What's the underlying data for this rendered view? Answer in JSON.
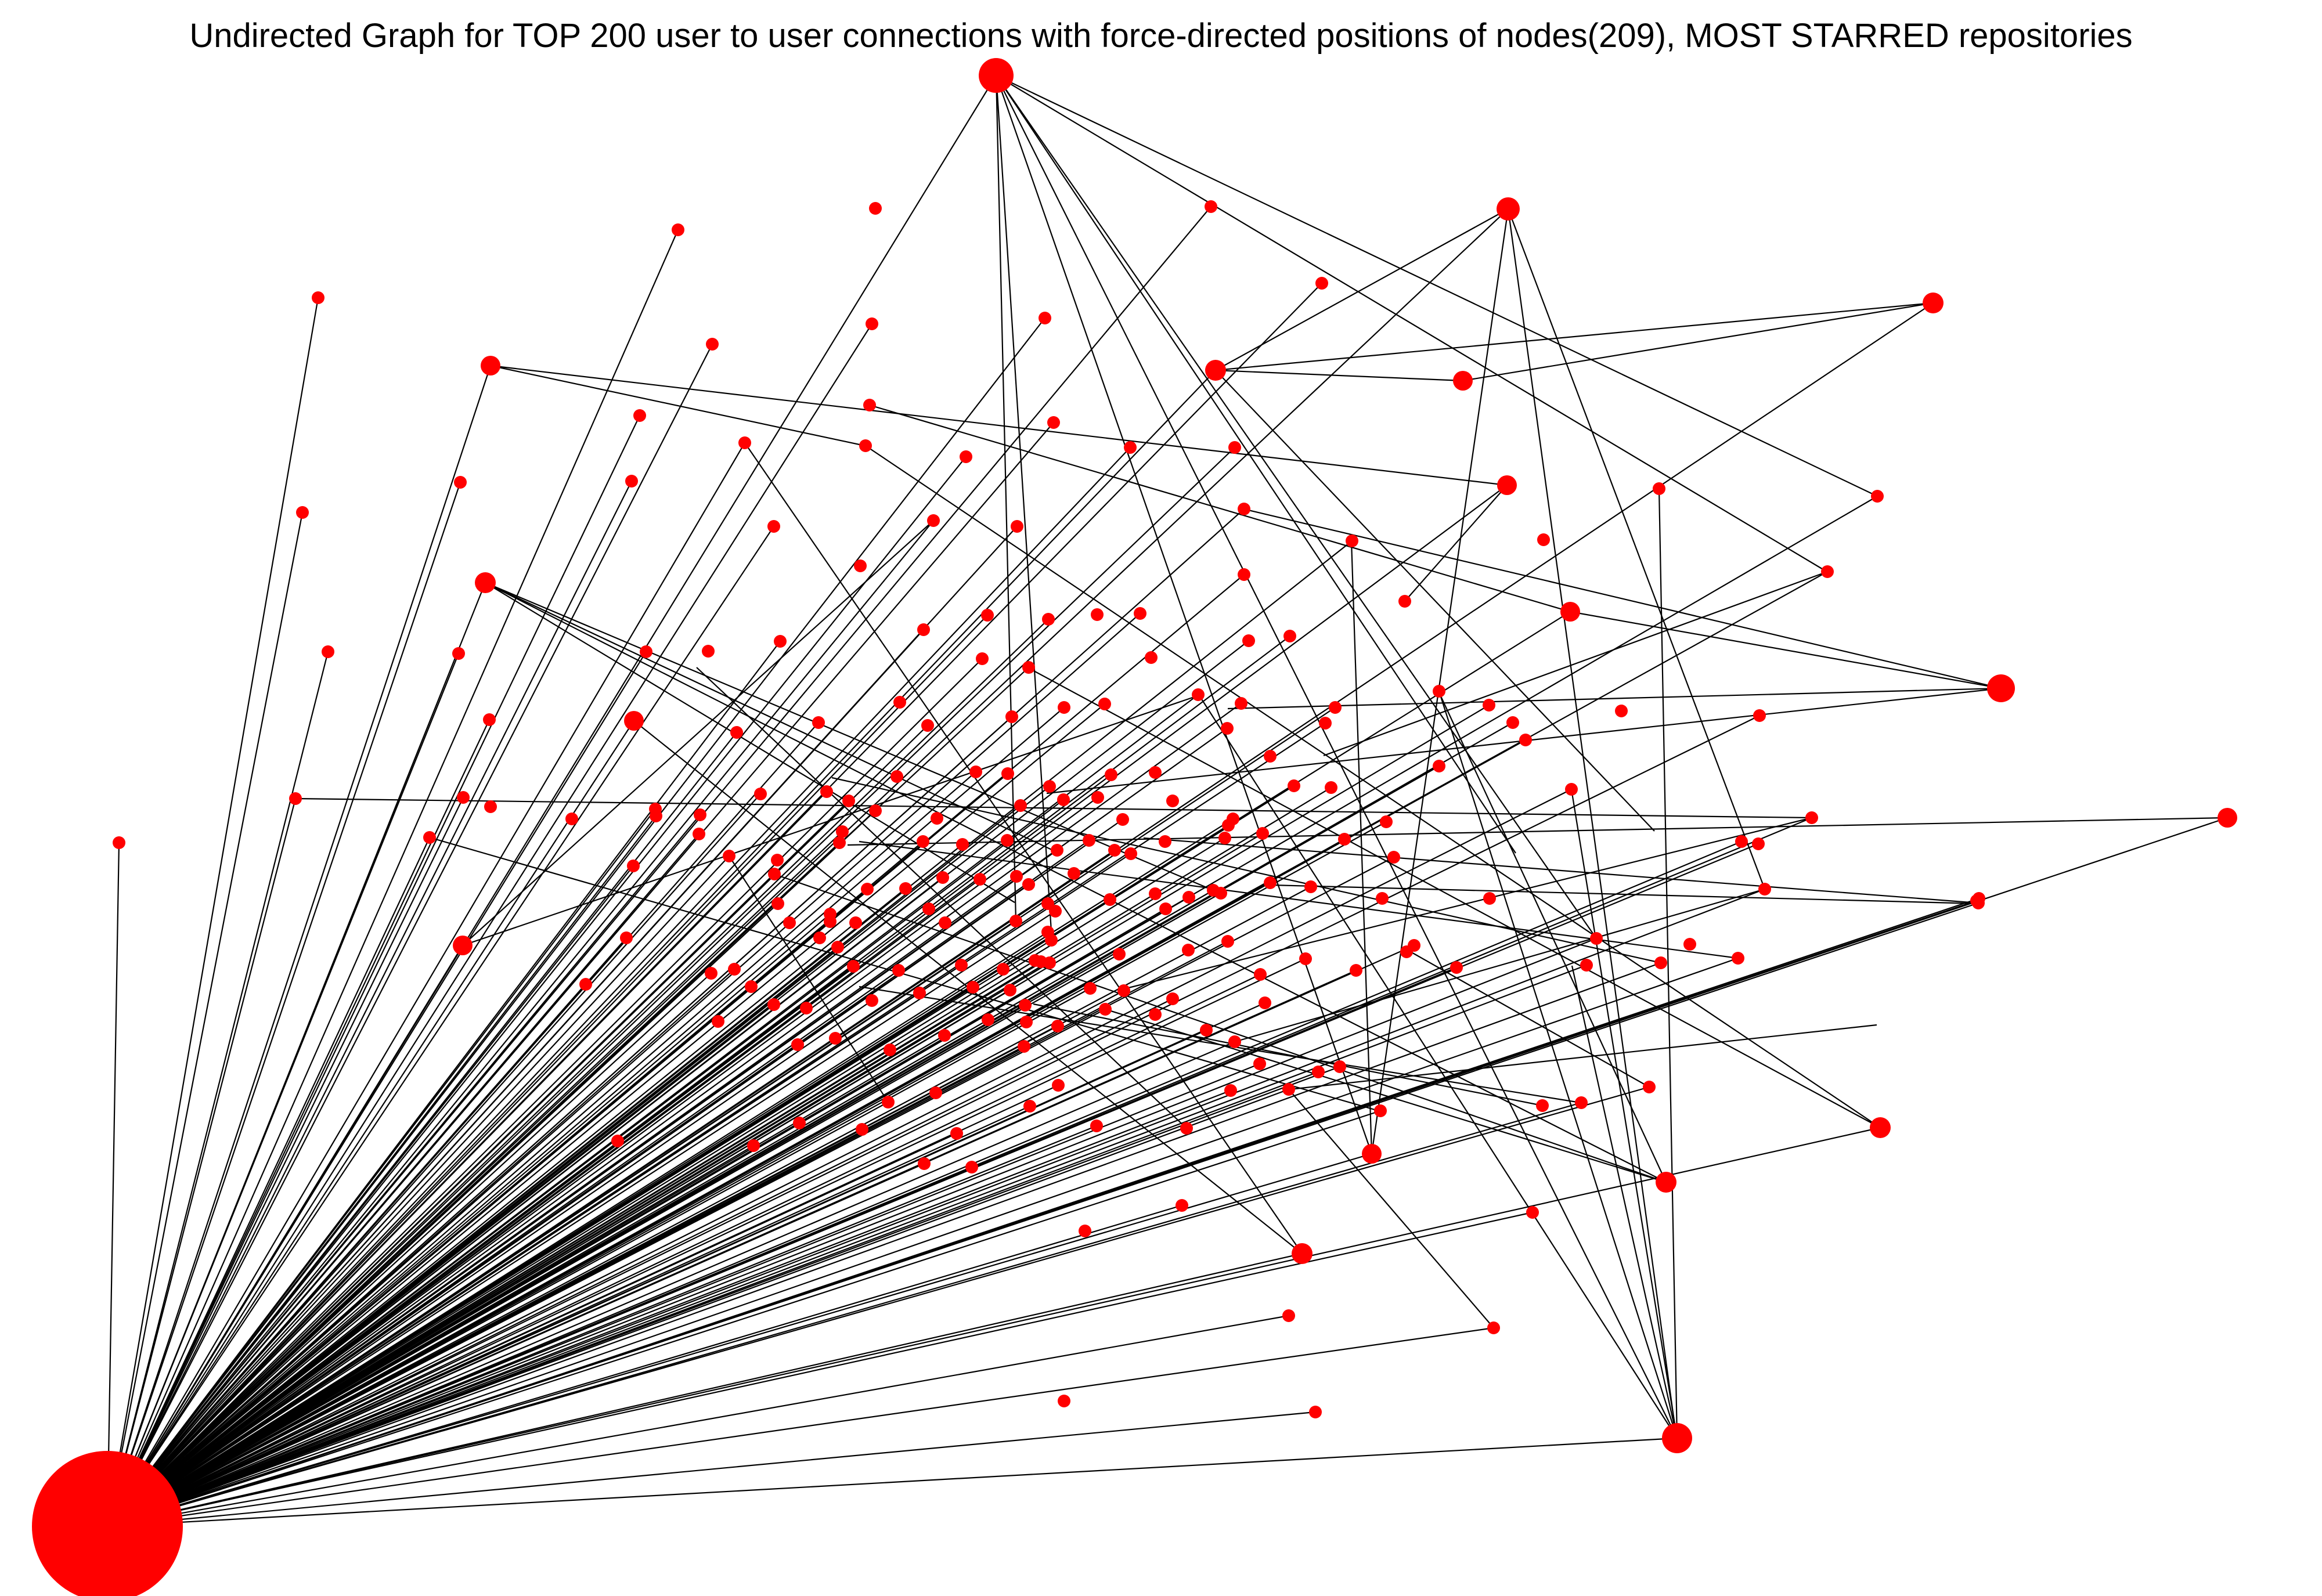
{
  "title": "Undirected Graph for TOP 200 user to user connections with force-directed positions of nodes(209), MOST STARRED repositories",
  "colors": {
    "node": "#ff0000",
    "edge": "#000000",
    "background": "#ffffff"
  },
  "graph": {
    "type": "undirected",
    "layout": "force-directed",
    "node_count": 209,
    "hub_node_id": "hub"
  }
}
